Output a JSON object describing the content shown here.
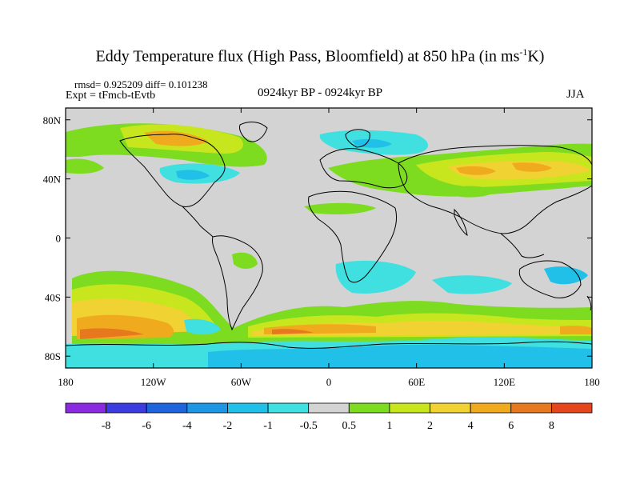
{
  "title": {
    "main": "Eddy Temperature flux (High Pass, Bloomfield) at 850 hPa (in ms",
    "sup": "-1",
    "tail": "K)"
  },
  "stats": "rmsd= 0.925209 diff= 0.101238",
  "expt": "Expt = tFmcb-tEvtb",
  "period": "0924kyr BP - 0924kyr BP",
  "season": "JJA",
  "map": {
    "lat_ticks": [
      {
        "label": "80N",
        "lat": 80
      },
      {
        "label": "40N",
        "lat": 40
      },
      {
        "label": "0",
        "lat": 0
      },
      {
        "label": "40S",
        "lat": -40
      },
      {
        "label": "80S",
        "lat": -80
      }
    ],
    "lon_ticks": [
      {
        "label": "180",
        "lon": -180
      },
      {
        "label": "120W",
        "lon": -120
      },
      {
        "label": "60W",
        "lon": -60
      },
      {
        "label": "0",
        "lon": 0
      },
      {
        "label": "60E",
        "lon": 60
      },
      {
        "label": "120E",
        "lon": 120
      },
      {
        "label": "180",
        "lon": 180
      }
    ],
    "background_color": "#d3d3d3"
  },
  "colorbar": {
    "colors": [
      "#8a2be2",
      "#3c3ce0",
      "#1e64dc",
      "#1e96e6",
      "#20c0e8",
      "#40e0e0",
      "#d3d3d3",
      "#7ddc1f",
      "#c8e61e",
      "#f0d232",
      "#f0aa1e",
      "#e6781e",
      "#e6461e"
    ],
    "labels": [
      "-8",
      "-6",
      "-4",
      "-2",
      "-1",
      "-0.5",
      "0.5",
      "1",
      "2",
      "4",
      "6",
      "8"
    ]
  }
}
